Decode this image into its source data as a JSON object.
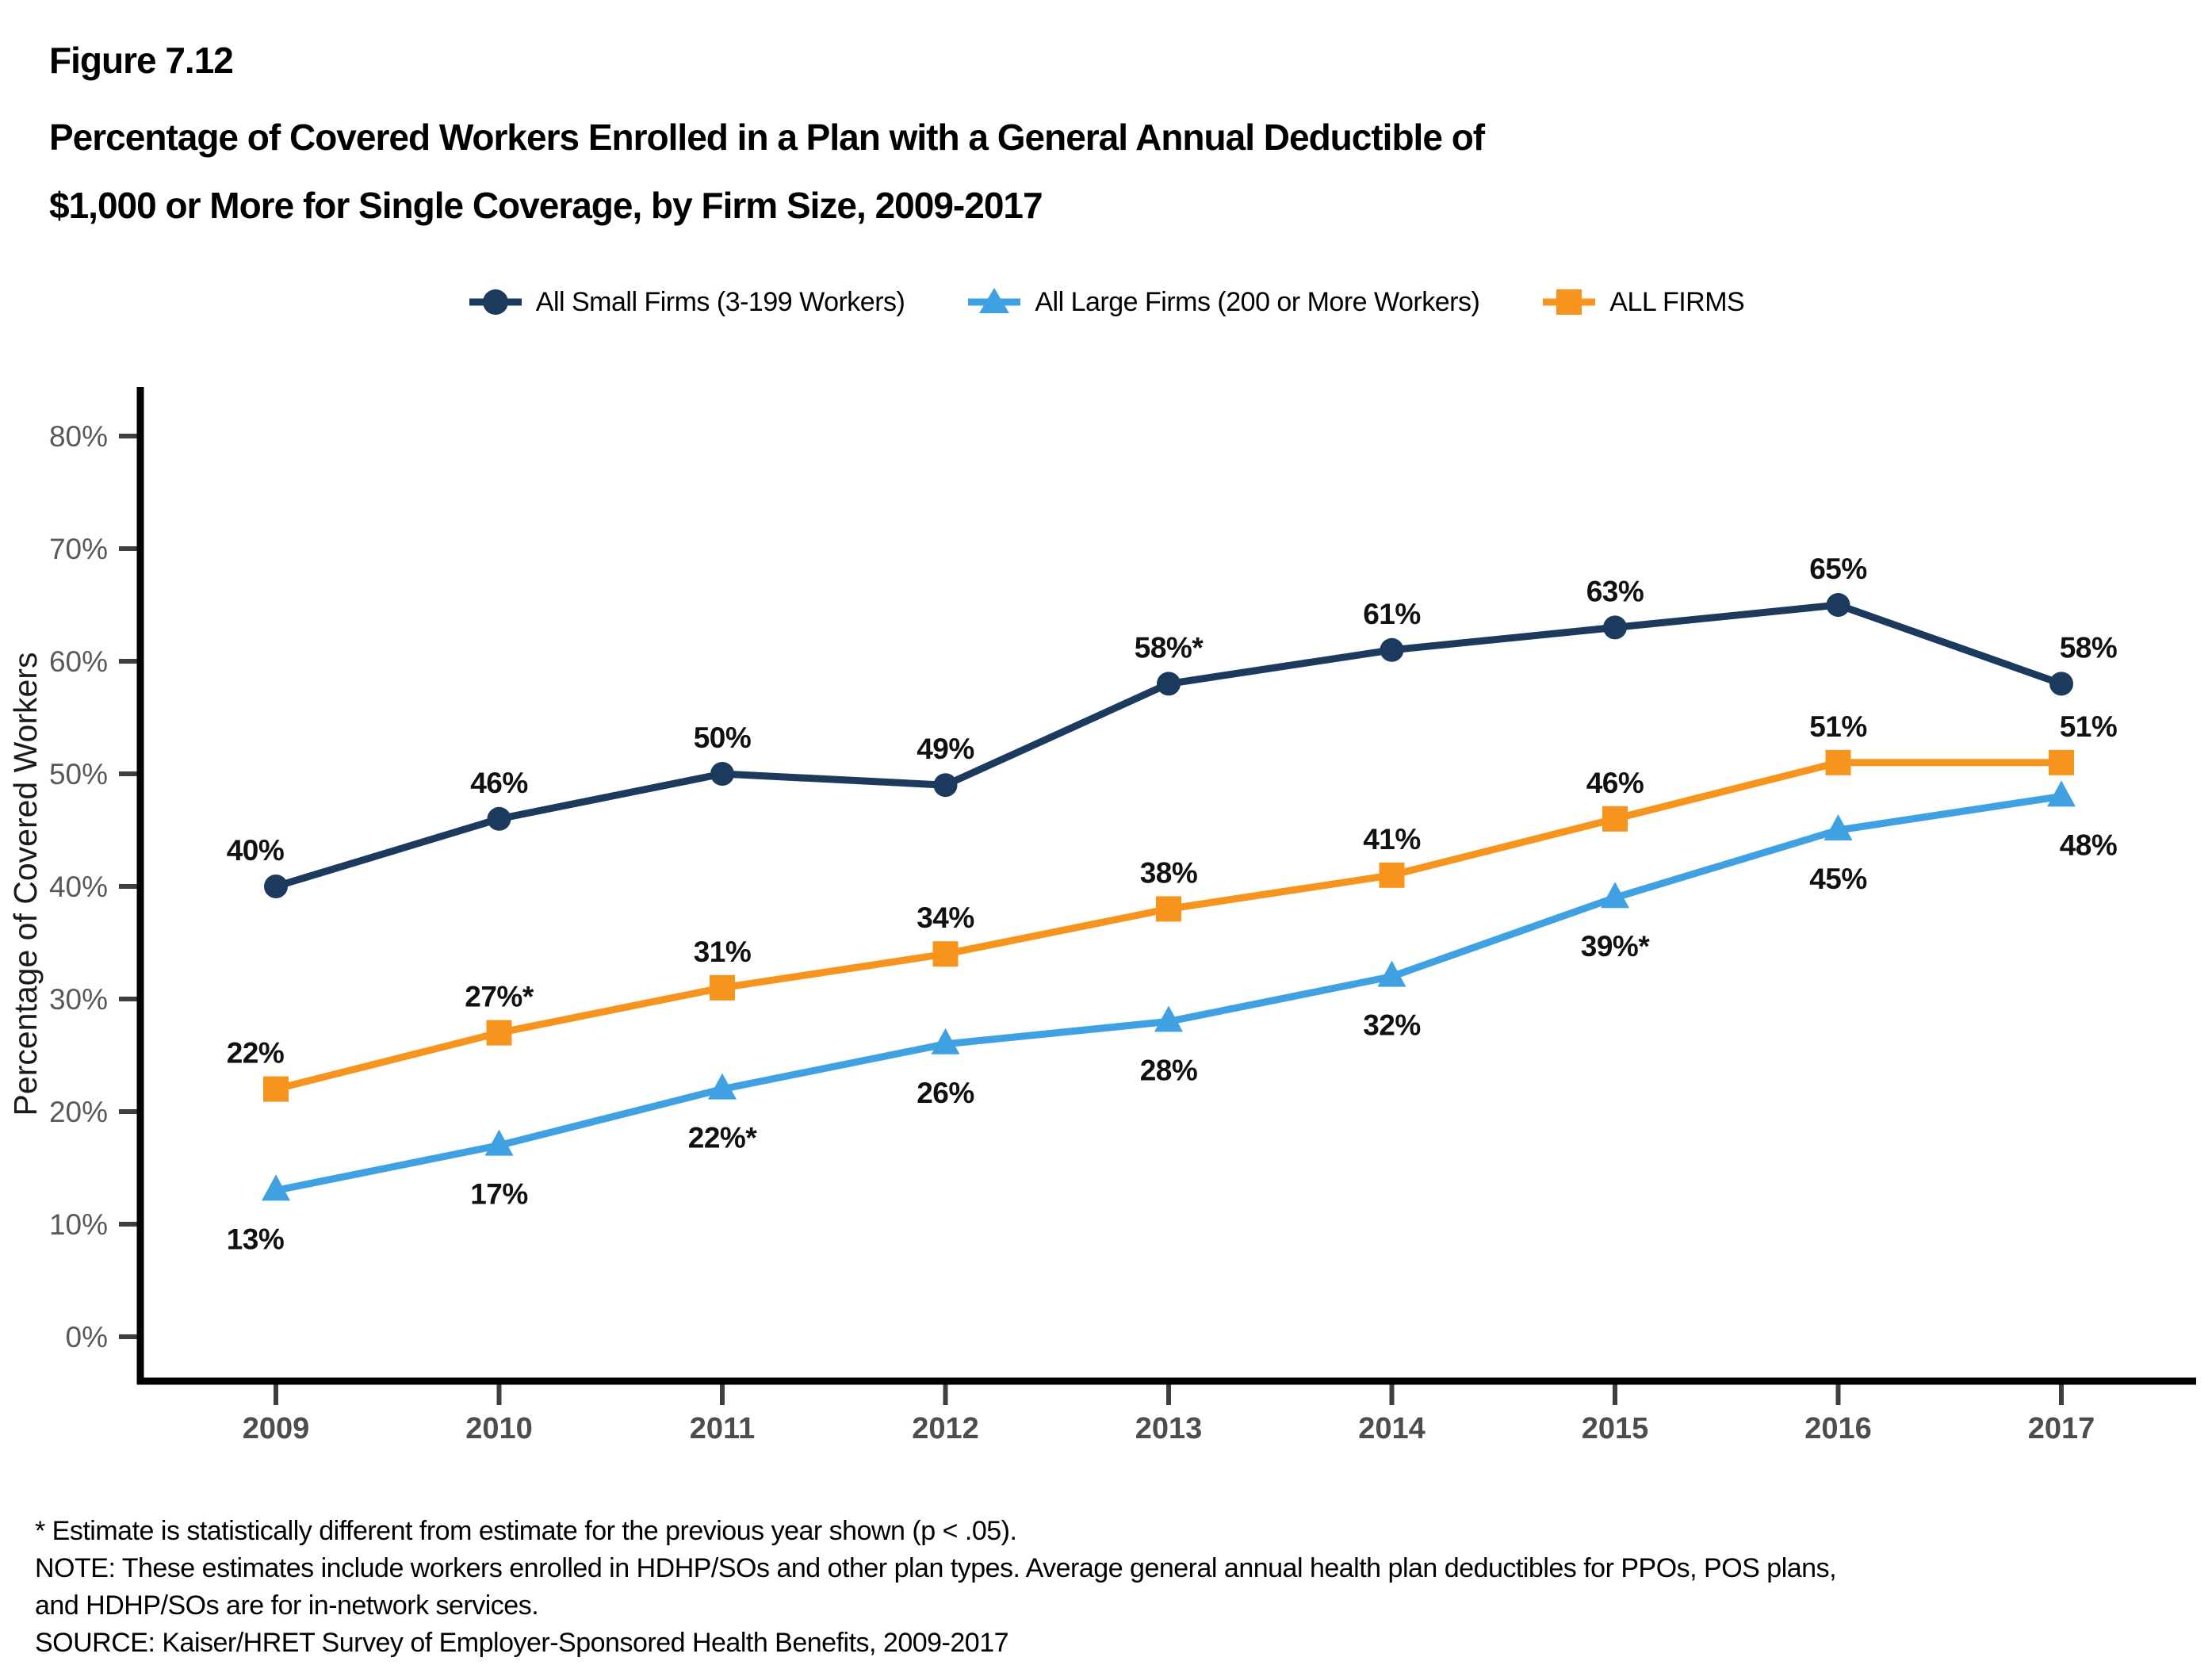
{
  "header": {
    "figure_label": "Figure 7.12",
    "title_line1": "Percentage of Covered Workers Enrolled in a Plan with a General Annual Deductible of",
    "title_line2": "$1,000 or More for Single Coverage, by Firm Size, 2009-2017"
  },
  "chart_data": {
    "type": "line",
    "title": "Percentage of Covered Workers Enrolled in a Plan with a General Annual Deductible of $1,000 or More for Single Coverage, by Firm Size, 2009-2017",
    "xlabel": "",
    "ylabel": "Percentage of Covered Workers",
    "categories": [
      "2009",
      "2010",
      "2011",
      "2012",
      "2013",
      "2014",
      "2015",
      "2016",
      "2017"
    ],
    "ylim": [
      0,
      80
    ],
    "y_tick_step": 10,
    "y_tick_labels": [
      "0%",
      "10%",
      "20%",
      "30%",
      "40%",
      "50%",
      "60%",
      "70%",
      "80%"
    ],
    "grid": false,
    "legend_position": "top",
    "series": [
      {
        "name": "All Small Firms (3-199 Workers)",
        "color": "#1B3A5E",
        "marker": "circle",
        "label_position": "above",
        "values": [
          40,
          46,
          50,
          49,
          58,
          61,
          63,
          65,
          58
        ],
        "labels": [
          "40%",
          "46%",
          "50%",
          "49%",
          "58%*",
          "61%",
          "63%",
          "65%",
          "58%"
        ]
      },
      {
        "name": "All Large Firms (200 or More Workers)",
        "color": "#3FA1E1",
        "marker": "triangle",
        "label_position": "below",
        "values": [
          13,
          17,
          22,
          26,
          28,
          32,
          39,
          45,
          48
        ],
        "labels": [
          "13%",
          "17%",
          "22%*",
          "26%",
          "28%",
          "32%",
          "39%*",
          "45%",
          "48%"
        ]
      },
      {
        "name": "ALL FIRMS",
        "color": "#F7941E",
        "marker": "square",
        "label_position": "above",
        "values": [
          22,
          27,
          31,
          34,
          38,
          41,
          46,
          51,
          51
        ],
        "labels": [
          "22%",
          "27%*",
          "31%",
          "34%",
          "38%",
          "41%",
          "46%",
          "51%",
          "51%"
        ]
      }
    ]
  },
  "footnotes": {
    "line1": "* Estimate is statistically different from estimate for the previous year shown (p < .05).",
    "line2": "NOTE: These estimates include workers enrolled in HDHP/SOs and other plan types. Average general annual health plan deductibles for PPOs, POS plans,",
    "line3": "and HDHP/SOs are for in-network services.",
    "line4": "SOURCE: Kaiser/HRET Survey of Employer-Sponsored Health Benefits, 2009-2017"
  },
  "colors": {
    "axis": "#000000",
    "tick_mark": "#3f3f3f",
    "y_tick_label": "#595959",
    "x_tick_label": "#4d4d4d",
    "data_label": "#111111"
  }
}
